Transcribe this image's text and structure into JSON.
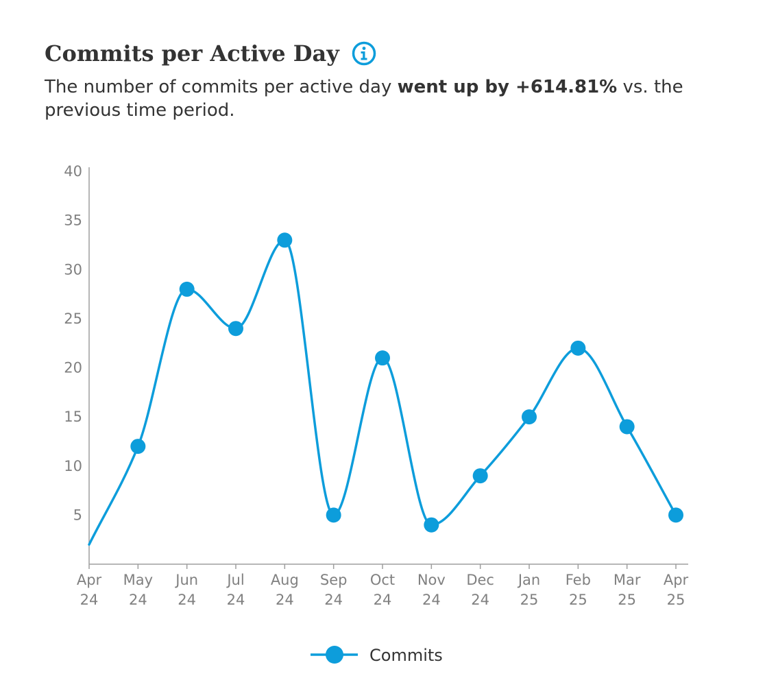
{
  "header": {
    "title": "Commits per Active Day",
    "subtitle_prefix": "The number of commits per active day ",
    "subtitle_bold": "went up by +614.81%",
    "subtitle_suffix": " vs. the previous time period.",
    "info_icon": "info-icon"
  },
  "colors": {
    "series": "#0d9ddb",
    "axis": "#9e9e9e",
    "tick_text": "#808080",
    "text": "#333333"
  },
  "chart_data": {
    "type": "line",
    "title": "Commits per Active Day",
    "xlabel": "",
    "ylabel": "",
    "categories": [
      [
        "Apr",
        "24"
      ],
      [
        "May",
        "24"
      ],
      [
        "Jun",
        "24"
      ],
      [
        "Jul",
        "24"
      ],
      [
        "Aug",
        "24"
      ],
      [
        "Sep",
        "24"
      ],
      [
        "Oct",
        "24"
      ],
      [
        "Nov",
        "24"
      ],
      [
        "Dec",
        "24"
      ],
      [
        "Jan",
        "25"
      ],
      [
        "Feb",
        "25"
      ],
      [
        "Mar",
        "25"
      ],
      [
        "Apr",
        "25"
      ]
    ],
    "series": [
      {
        "name": "Commits",
        "values": [
          2,
          12,
          28,
          24,
          33,
          5,
          21,
          4,
          9,
          15,
          22,
          14,
          5
        ],
        "markers": [
          false,
          true,
          true,
          true,
          true,
          true,
          true,
          true,
          true,
          true,
          true,
          true,
          true
        ]
      }
    ],
    "ylim": [
      0,
      40
    ],
    "yticks": [
      5,
      10,
      15,
      20,
      25,
      30,
      35,
      40
    ],
    "grid": false,
    "smooth": true,
    "legend": "bottom-center"
  }
}
